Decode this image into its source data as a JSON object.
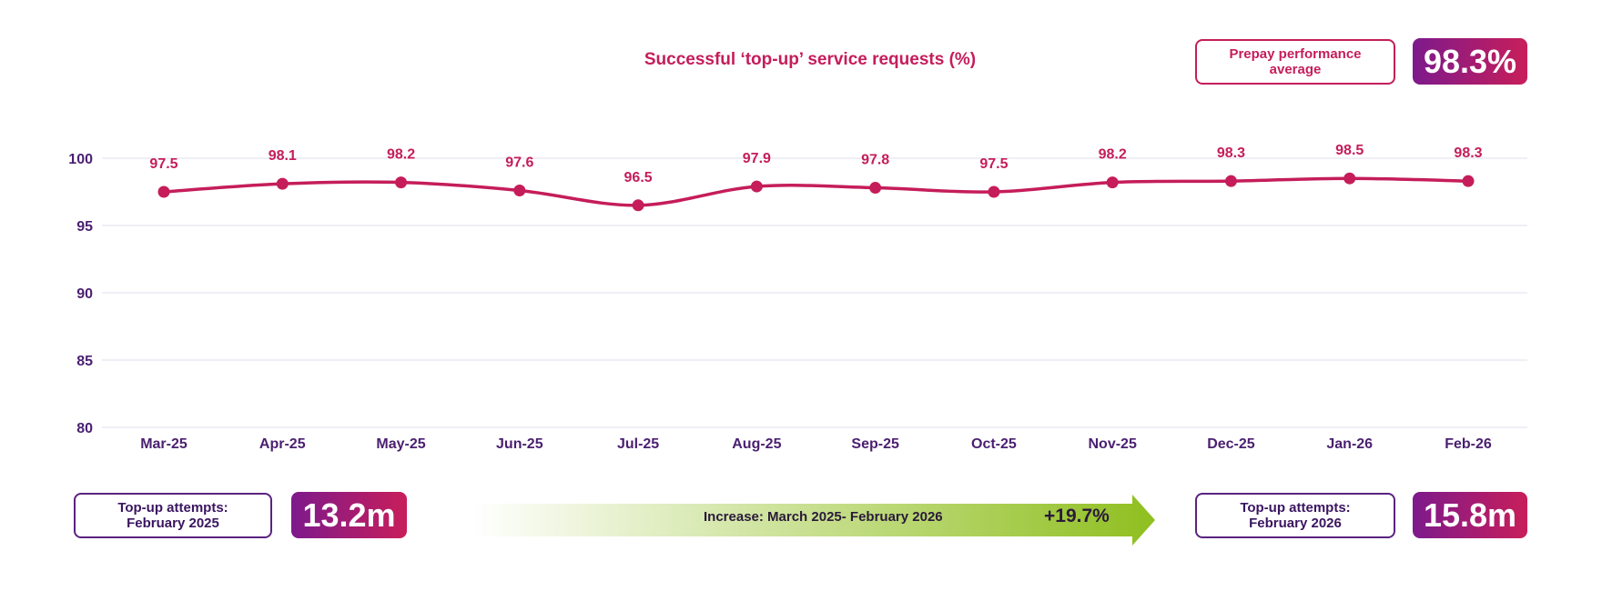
{
  "header": {
    "title": "Successful ‘top-up’ service requests (%)"
  },
  "kpi": {
    "average_label": "Prepay performance average",
    "average_value": "98.3%"
  },
  "bottom": {
    "start_label": "Top-up attempts: February 2025",
    "start_value": "13.2m",
    "increase_label": "Increase: March 2025- February 2026",
    "increase_value": "+19.7%",
    "end_label": "Top-up attempts: February 2026",
    "end_value": "15.8m"
  },
  "colors": {
    "line": "#c51d5a",
    "axis_text": "#4a1f70",
    "grid": "#e0dcec",
    "gradient_start": "#7d1a8c",
    "gradient_end": "#c81e5a",
    "arrow": "#8fbf1f"
  },
  "chart_data": {
    "type": "line",
    "title": "Successful ‘top-up’ service requests (%)",
    "categories": [
      "Mar-25",
      "Apr-25",
      "May-25",
      "Jun-25",
      "Jul-25",
      "Aug-25",
      "Sep-25",
      "Oct-25",
      "Nov-25",
      "Dec-25",
      "Jan-26",
      "Feb-26"
    ],
    "values": [
      97.5,
      98.1,
      98.2,
      97.6,
      96.5,
      97.9,
      97.8,
      97.5,
      98.2,
      98.3,
      98.5,
      98.3
    ],
    "ylim": [
      80,
      100
    ],
    "yticks": [
      80,
      85,
      90,
      95,
      100
    ],
    "grid": true,
    "data_labels": true
  }
}
